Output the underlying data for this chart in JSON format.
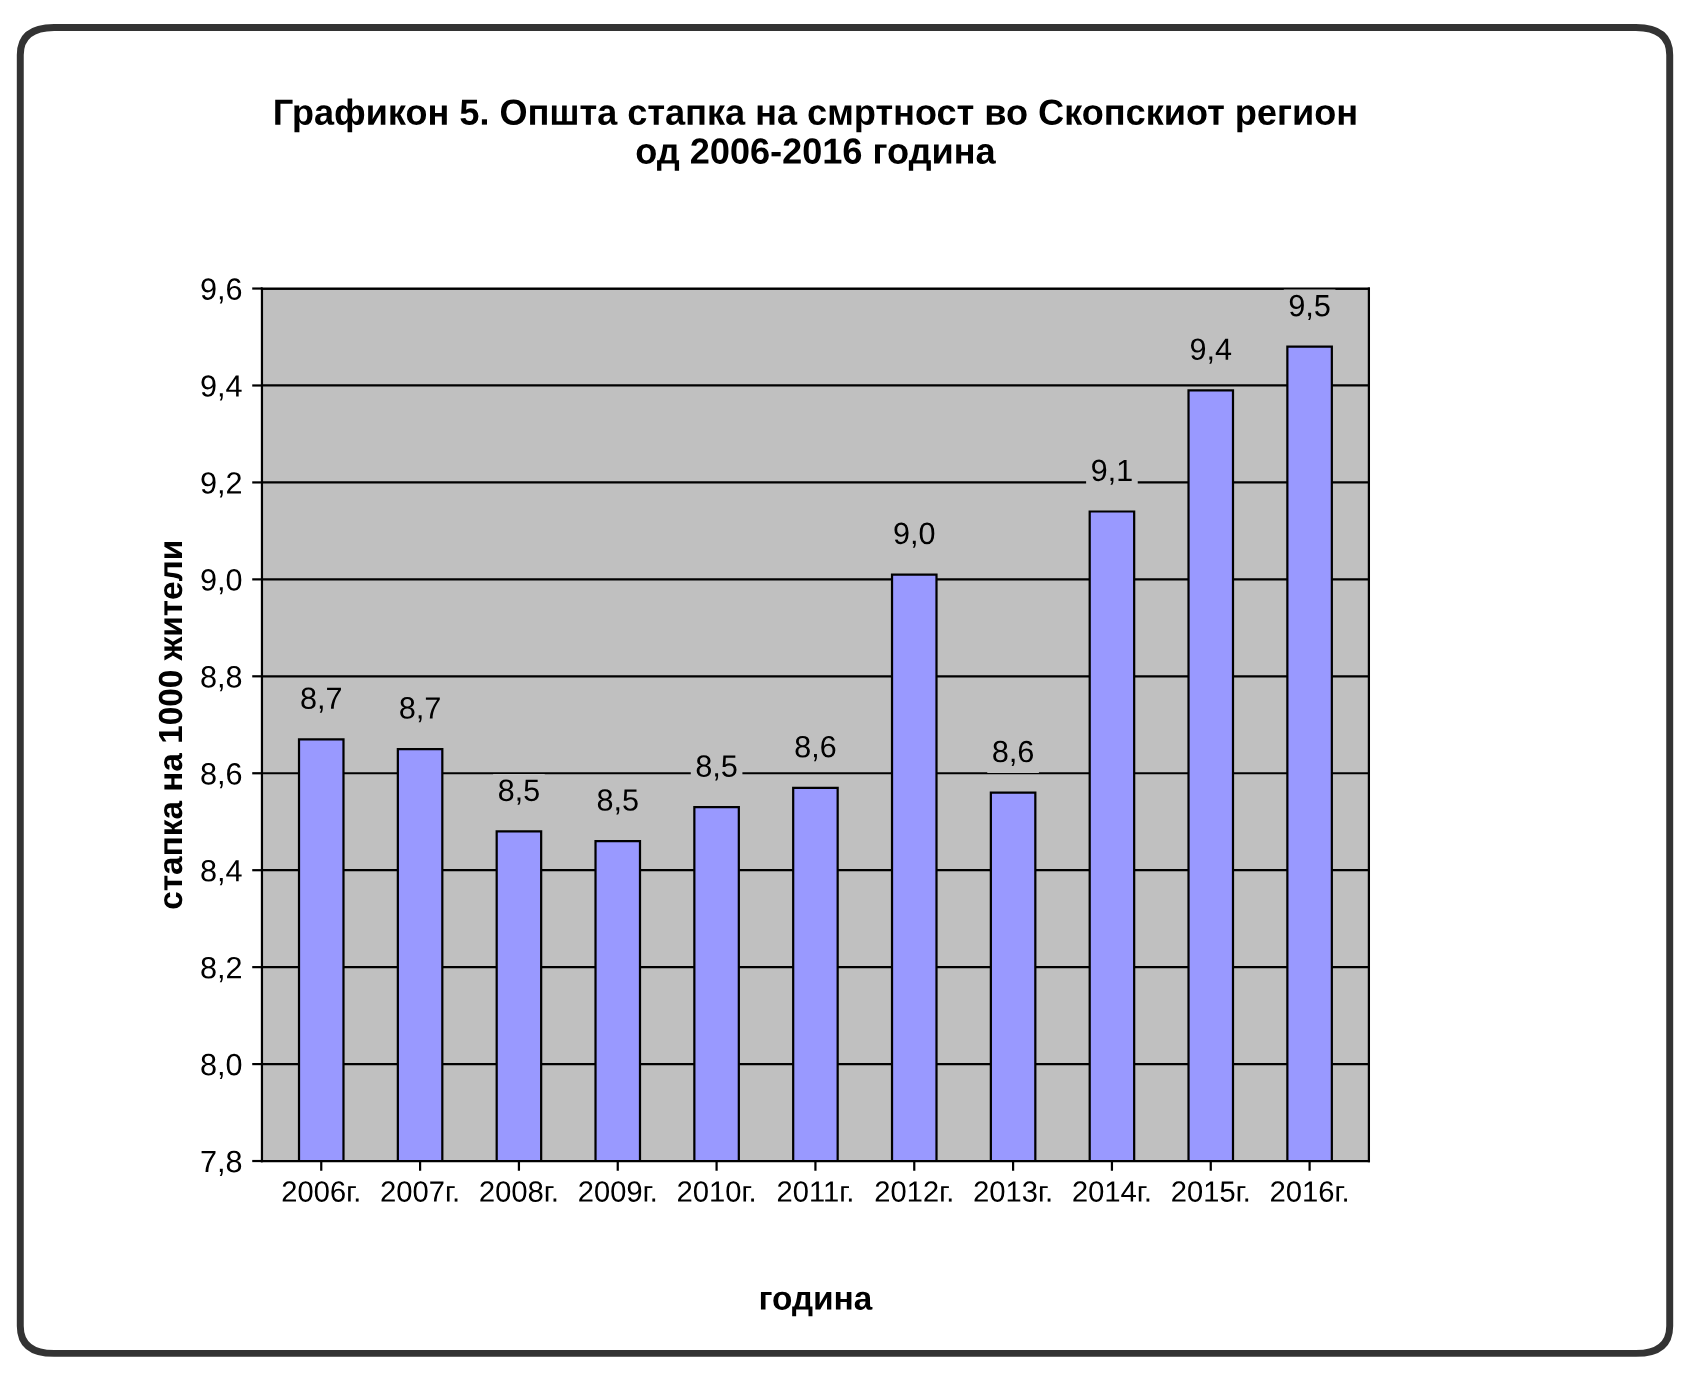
{
  "chart_data": {
    "type": "bar",
    "title": "Графикон 5. Општа стапка на смртност во Скопскиот регион\nод 2006-2016 година",
    "xlabel": "година",
    "ylabel": "стапка на 1000 жители",
    "categories": [
      "2006г.",
      "2007г.",
      "2008г.",
      "2009г.",
      "2010г.",
      "2011г.",
      "2012г.",
      "2013г.",
      "2014г.",
      "2015г.",
      "2016г."
    ],
    "values": [
      8.67,
      8.65,
      8.48,
      8.46,
      8.53,
      8.57,
      9.01,
      8.56,
      9.14,
      9.39,
      9.48
    ],
    "value_labels": [
      "8,7",
      "8,7",
      "8,5",
      "8,5",
      "8,5",
      "8,6",
      "9,0",
      "8,6",
      "9,1",
      "9,4",
      "9,5"
    ],
    "color": "#9999ff",
    "ylim": [
      7.8,
      9.6
    ],
    "yticks": [
      {
        "value": 7.8,
        "label": "7,8"
      },
      {
        "value": 8.0,
        "label": "8,0"
      },
      {
        "value": 8.2,
        "label": "8,2"
      },
      {
        "value": 8.4,
        "label": "8,4"
      },
      {
        "value": 8.6,
        "label": "8,6"
      },
      {
        "value": 8.8,
        "label": "8,8"
      },
      {
        "value": 9.0,
        "label": "9,0"
      },
      {
        "value": 9.2,
        "label": "9,2"
      },
      {
        "value": 9.4,
        "label": "9,4"
      },
      {
        "value": 9.6,
        "label": "9,6"
      }
    ],
    "grid": "y"
  }
}
